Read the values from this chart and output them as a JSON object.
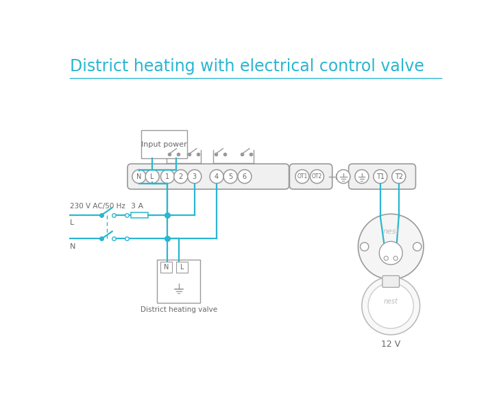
{
  "title": "District heating with electrical control valve",
  "title_color": "#29b6d0",
  "title_fontsize": 17,
  "bg_color": "#ffffff",
  "wire_color": "#29b6d0",
  "gray": "#999999",
  "darkgray": "#666666",
  "label_230": "230 V AC/50 Hz",
  "label_L": "L",
  "label_N": "N",
  "label_3A": "3 A",
  "label_input_power": "Input power",
  "label_dist_valve": "District heating valve",
  "label_12v": "12 V",
  "label_nest": "nest"
}
